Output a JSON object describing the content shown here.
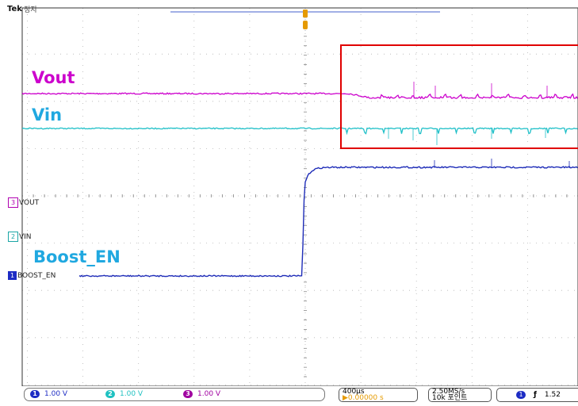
{
  "header": {
    "brand": "Tek",
    "state": "정지"
  },
  "annotations": {
    "vout": "Vout",
    "vin": "Vin",
    "boost_en": "Boost_EN"
  },
  "ground_markers": [
    {
      "num": "3",
      "label": "VOUT",
      "color": "#b000b0"
    },
    {
      "num": "2",
      "label": "VIN",
      "color": "#1aa6a6"
    },
    {
      "num": "1",
      "label": "BOOST_EN",
      "color": "#1d2cc4"
    }
  ],
  "channels": [
    {
      "num": "1",
      "scale": "1.00 V",
      "color": "#1d2cc4"
    },
    {
      "num": "2",
      "scale": "1.00 V",
      "color": "#1fc1c1"
    },
    {
      "num": "3",
      "scale": "1.00 V",
      "color": "#a000a0"
    }
  ],
  "timebase": {
    "per_div": "400µs",
    "trigger_pos": "▶0.00000 s"
  },
  "acquisition": {
    "rate": "2.50MS/s",
    "points": "10k 포인트"
  },
  "trigger": {
    "source": "1",
    "slope": "ƒ",
    "level": "1.52"
  },
  "colors": {
    "vout": "#cc00cc",
    "vin": "#20c0c8",
    "boost_en": "#1f2db8",
    "highlight": "#e00000",
    "trigger_marker": "#e59a00"
  }
}
